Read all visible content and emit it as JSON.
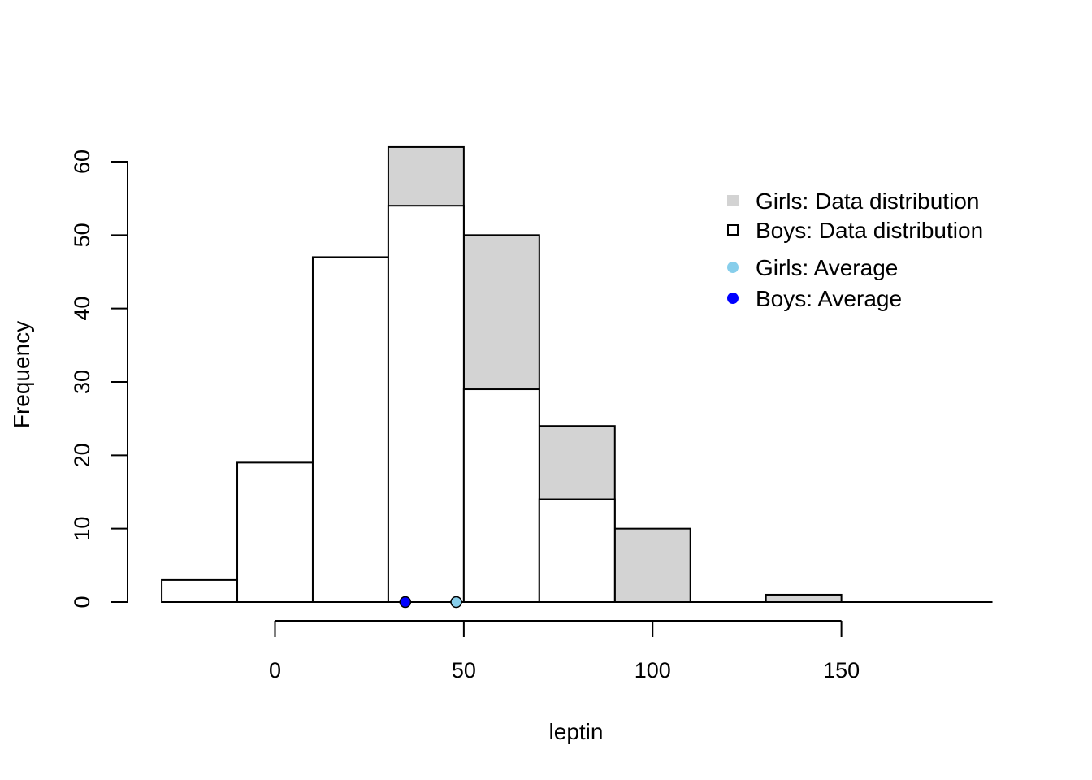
{
  "chart_data": {
    "type": "bar",
    "xlabel": "leptin",
    "ylabel": "Frequency",
    "xlim": [
      -30,
      190
    ],
    "ylim": [
      0,
      62
    ],
    "x_ticks": [
      0,
      50,
      100,
      150
    ],
    "y_ticks": [
      0,
      10,
      20,
      30,
      40,
      50,
      60
    ],
    "grid": false,
    "legend_position": "top-right",
    "series": [
      {
        "name": "Girls: Data distribution",
        "color": "#d3d3d3",
        "bins": [
          {
            "x0": 30,
            "x1": 50,
            "count": 62
          },
          {
            "x0": 50,
            "x1": 70,
            "count": 50
          },
          {
            "x0": 70,
            "x1": 90,
            "count": 24
          },
          {
            "x0": 90,
            "x1": 110,
            "count": 10
          },
          {
            "x0": 130,
            "x1": 150,
            "count": 1
          }
        ]
      },
      {
        "name": "Boys: Data distribution",
        "color": "#ffffff",
        "bins": [
          {
            "x0": -30,
            "x1": -10,
            "count": 3
          },
          {
            "x0": -10,
            "x1": 10,
            "count": 19
          },
          {
            "x0": 10,
            "x1": 30,
            "count": 47
          },
          {
            "x0": 30,
            "x1": 50,
            "count": 54
          },
          {
            "x0": 50,
            "x1": 70,
            "count": 29
          },
          {
            "x0": 70,
            "x1": 90,
            "count": 14
          }
        ]
      }
    ],
    "averages": [
      {
        "name": "Girls: Average",
        "x": 48,
        "y": 0,
        "color": "#87ceeb"
      },
      {
        "name": "Boys: Average",
        "x": 34.5,
        "y": 0,
        "color": "#0000ff"
      }
    ],
    "legend": [
      {
        "label": "Girls: Data distribution",
        "marker": "filled-square",
        "color": "#d3d3d3"
      },
      {
        "label": "Boys: Data distribution",
        "marker": "open-square",
        "color": "#000000"
      },
      {
        "label": "Girls: Average",
        "marker": "dot",
        "color": "#87ceeb"
      },
      {
        "label": "Boys: Average",
        "marker": "dot",
        "color": "#0000ff"
      }
    ]
  }
}
